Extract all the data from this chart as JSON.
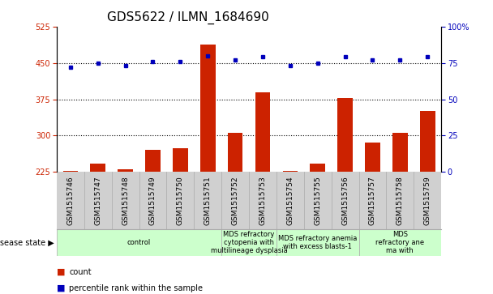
{
  "title": "GDS5622 / ILMN_1684690",
  "samples": [
    "GSM1515746",
    "GSM1515747",
    "GSM1515748",
    "GSM1515749",
    "GSM1515750",
    "GSM1515751",
    "GSM1515752",
    "GSM1515753",
    "GSM1515754",
    "GSM1515755",
    "GSM1515756",
    "GSM1515757",
    "GSM1515758",
    "GSM1515759"
  ],
  "counts": [
    227,
    243,
    230,
    270,
    274,
    488,
    305,
    390,
    228,
    242,
    377,
    285,
    305,
    350
  ],
  "percentiles": [
    72,
    75,
    73,
    76,
    76,
    80,
    77,
    79,
    73,
    75,
    79,
    77,
    77,
    79
  ],
  "ylim_left": [
    225,
    525
  ],
  "ylim_right": [
    0,
    100
  ],
  "yticks_left": [
    225,
    300,
    375,
    450,
    525
  ],
  "yticks_right": [
    0,
    25,
    50,
    75,
    100
  ],
  "hlines": [
    300,
    375,
    450
  ],
  "bar_color": "#cc2200",
  "dot_color": "#0000bb",
  "bg_color": "#e8e8e8",
  "disease_groups": [
    {
      "label": "control",
      "start": 0,
      "end": 6
    },
    {
      "label": "MDS refractory\ncytopenia with\nmultilineage dysplasia",
      "start": 6,
      "end": 8
    },
    {
      "label": "MDS refractory anemia\nwith excess blasts-1",
      "start": 8,
      "end": 11
    },
    {
      "label": "MDS\nrefractory ane\nma with",
      "start": 11,
      "end": 14
    }
  ],
  "disease_state_label": "disease state",
  "bar_width": 0.55,
  "title_fontsize": 11,
  "tick_fontsize": 7,
  "xtick_fontsize": 6.5,
  "label_fontsize": 7.5,
  "green_color": "#ccffcc",
  "gray_color": "#d0d0d0"
}
